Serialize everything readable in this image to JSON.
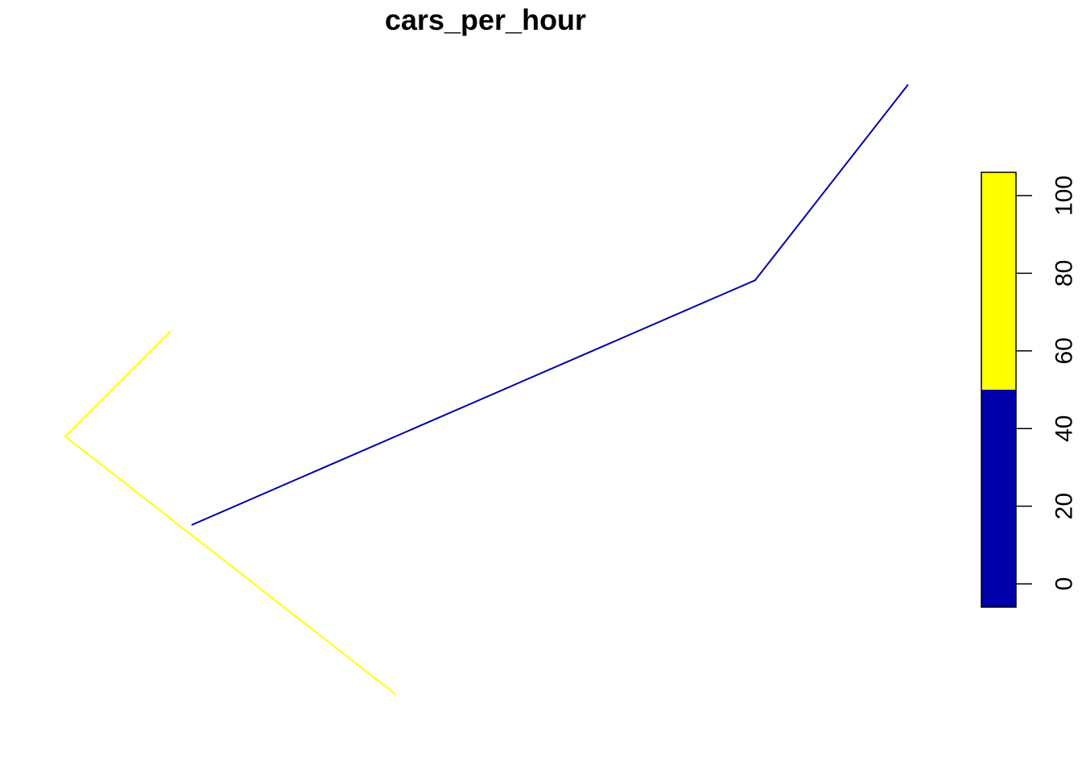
{
  "chart_data": {
    "type": "line",
    "title": "cars_per_hour",
    "xlabel": "",
    "ylabel": "",
    "axes_shown": false,
    "grid": false,
    "series": [
      {
        "value_class": "0-50",
        "color": "#0000AA",
        "points": [
          [
            238,
            652
          ],
          [
            938,
            348
          ],
          [
            1128,
            105
          ]
        ]
      },
      {
        "value_class": "50-106",
        "color": "#FFFF00",
        "points": [
          [
            212,
            411
          ],
          [
            81,
            542
          ],
          [
            491,
            862
          ]
        ]
      }
    ],
    "legend": {
      "type": "colorbar",
      "placement": "right",
      "range": [
        -6,
        106
      ],
      "ticks": [
        "0",
        "20",
        "40",
        "60",
        "80",
        "100"
      ],
      "bins": [
        {
          "from": -6,
          "to": 50,
          "color": "#0000AA"
        },
        {
          "from": 50,
          "to": 106,
          "color": "#FFFF00"
        }
      ]
    }
  }
}
